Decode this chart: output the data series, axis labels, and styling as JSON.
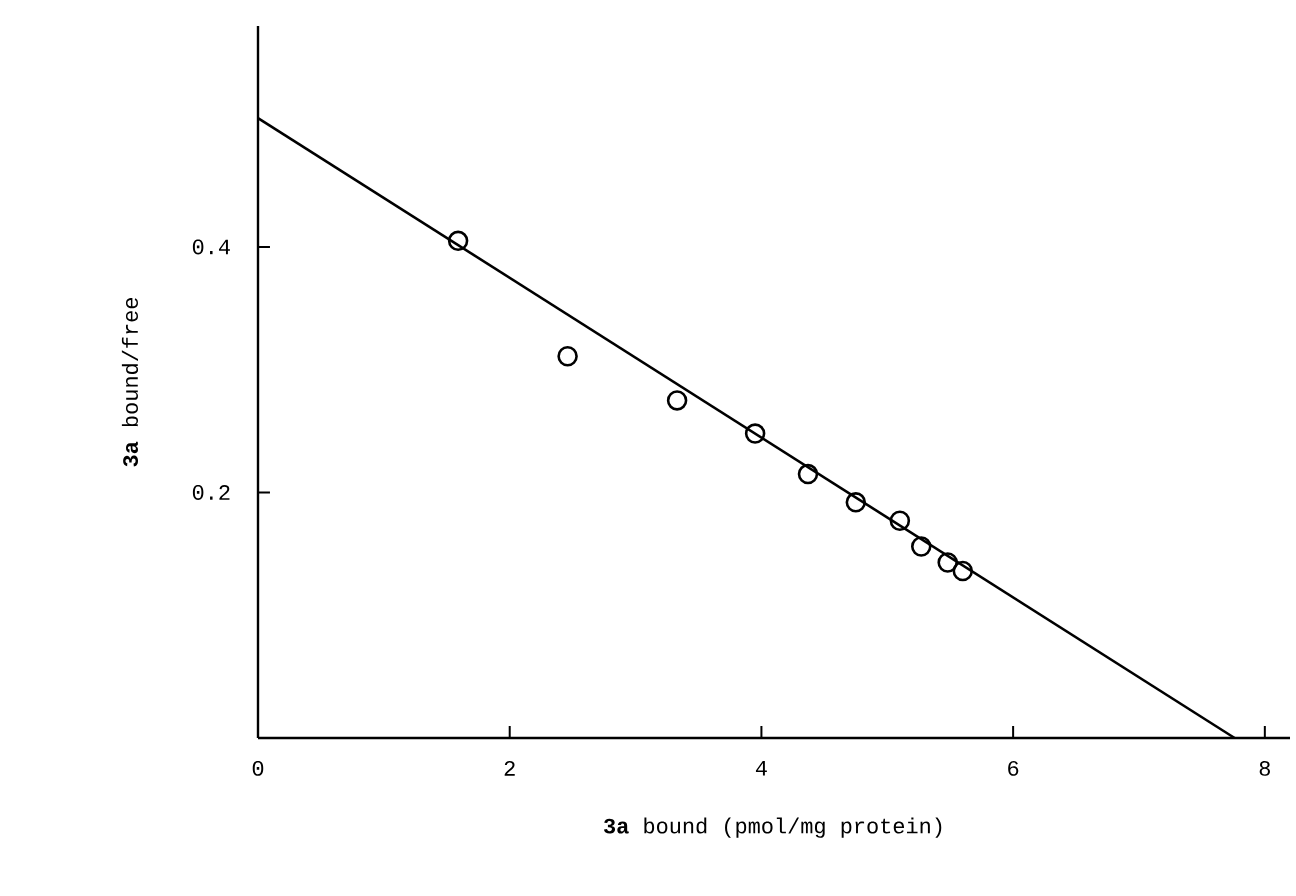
{
  "chart_data": {
    "type": "scatter",
    "xlabel": "**3a** bound (pmol/mg protein)",
    "ylabel": "**3a** bound/free",
    "xlim": [
      0,
      8.2
    ],
    "ylim": [
      0,
      0.58
    ],
    "xticks": [
      0,
      2,
      4,
      6,
      8
    ],
    "yticks": [
      0.2,
      0.4
    ],
    "grid": false,
    "series": [
      {
        "marker": "circle",
        "color": "#000000",
        "x": [
          1.59,
          2.46,
          3.33,
          3.95,
          4.37,
          4.75,
          5.1,
          5.27,
          5.48,
          5.6
        ],
        "values": [
          0.405,
          0.311,
          0.275,
          0.248,
          0.215,
          0.192,
          0.177,
          0.156,
          0.143,
          0.136
        ]
      },
      {
        "type": "line",
        "marker": "none",
        "line_style": "solid",
        "color": "#000000",
        "x": [
          0,
          7.76
        ],
        "values": [
          0.505,
          0
        ]
      }
    ]
  }
}
